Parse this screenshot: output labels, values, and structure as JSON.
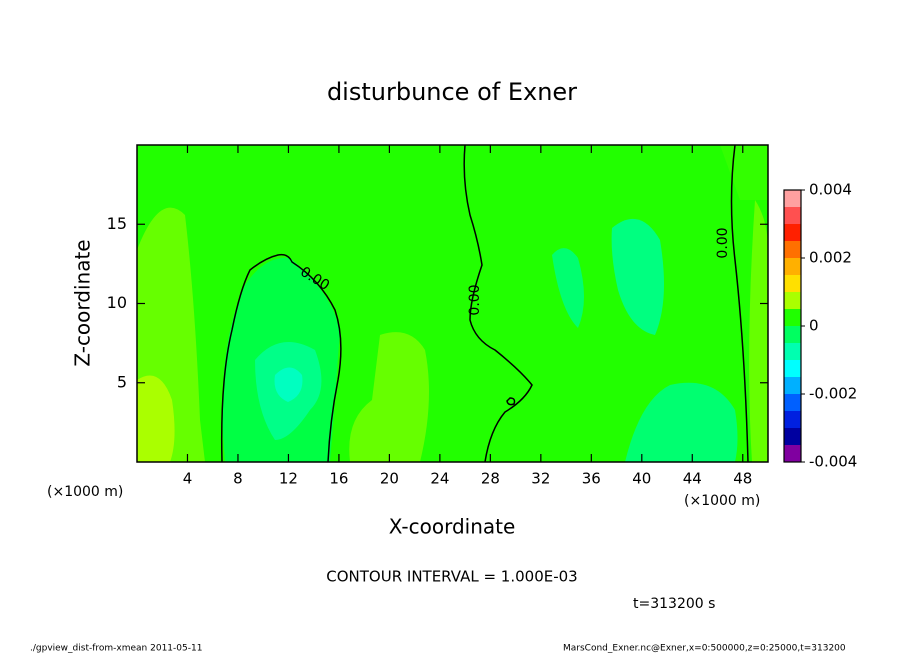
{
  "chart_data": {
    "type": "contour",
    "title": "disturbunce of Exner",
    "x_label": "X-coordinate",
    "y_label": "Z-coordinate",
    "x_unit": "(×1000 m)",
    "y_unit": "(×1000 m)",
    "xlim": [
      0,
      50
    ],
    "ylim": [
      0,
      20
    ],
    "xticks": [
      4,
      8,
      12,
      16,
      20,
      24,
      28,
      32,
      36,
      40,
      44,
      48
    ],
    "yticks": [
      5,
      10,
      15
    ],
    "contour_labels": [
      "0.00",
      "0.00",
      "0.00"
    ],
    "colorbar": {
      "lim": [
        -0.004,
        0.004
      ],
      "ticks": [
        -0.004,
        -0.002,
        0,
        0.002,
        0.004
      ],
      "colors": [
        "#8000a0",
        "#0000a0",
        "#0020e0",
        "#0060ff",
        "#00b0ff",
        "#00ffff",
        "#00ffb0",
        "#00ff60",
        "#20ff00",
        "#aaff00",
        "#ffe000",
        "#ffb000",
        "#ff7000",
        "#ff2000",
        "#ff5050",
        "#ffa0a0"
      ]
    },
    "contour_interval": "CONTOUR INTERVAL = 1.000E-03",
    "time": "t=313200 s",
    "footer_left": "./gpview_dist-from-xmean  2011-05-11",
    "footer_right": "MarsCond_Exner.nc@Exner,x=0:500000,z=0:25000,t=313200"
  }
}
